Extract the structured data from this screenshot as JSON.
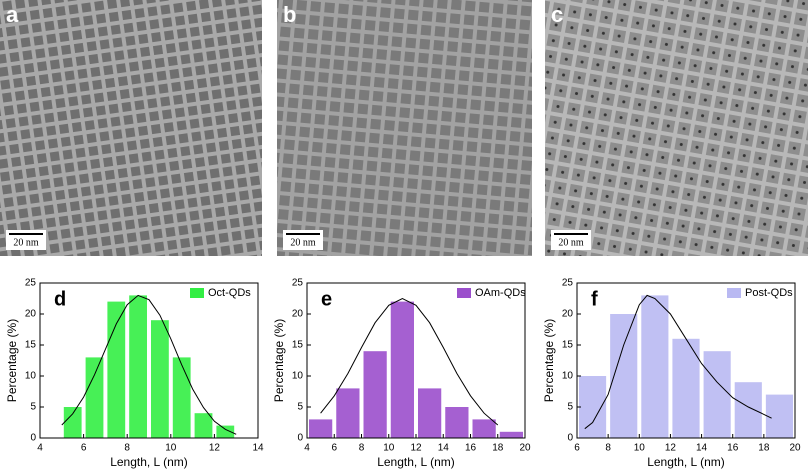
{
  "images": [
    {
      "label": "a",
      "scale_bar": "20 nm"
    },
    {
      "label": "b",
      "scale_bar": "20 nm"
    },
    {
      "label": "c",
      "scale_bar": "20 nm"
    }
  ],
  "chart_data": [
    {
      "type": "histogram",
      "label": "d",
      "legend": "Oct-QDs",
      "color": "#33ee44",
      "xlabel": "Length, L (nm)",
      "ylabel": "Percentage (%)",
      "bins": [
        5,
        6,
        7,
        8,
        9,
        10,
        11,
        12,
        13
      ],
      "values": [
        5,
        13,
        22,
        23,
        19,
        13,
        4,
        2
      ],
      "xlim": [
        4,
        14
      ],
      "xticks": [
        4,
        6,
        8,
        10,
        12,
        14
      ],
      "ylim": [
        0,
        25
      ],
      "yticks": [
        0,
        5,
        10,
        15,
        20,
        25
      ],
      "curve": {
        "x": [
          5,
          5.5,
          6,
          6.5,
          7,
          7.5,
          8,
          8.5,
          9,
          9.5,
          10,
          10.5,
          11,
          11.5,
          12,
          12.5,
          13
        ],
        "values": [
          2.1,
          3.9,
          6.6,
          10.2,
          14.3,
          18.4,
          21.5,
          23.0,
          22.3,
          19.8,
          16.0,
          11.8,
          7.9,
          4.9,
          2.7,
          1.4,
          0.6
        ]
      }
    },
    {
      "type": "histogram",
      "label": "e",
      "legend": "OAm-QDs",
      "color": "#9b4fcc",
      "xlabel": "Length, L (nm)",
      "ylabel": "Percentage (%)",
      "bins": [
        4,
        6,
        8,
        10,
        12,
        14,
        16,
        18,
        20
      ],
      "values": [
        3,
        8,
        14,
        22,
        8,
        5,
        3,
        1
      ],
      "xlim": [
        4,
        20
      ],
      "xticks": [
        4,
        6,
        8,
        10,
        12,
        14,
        16,
        18,
        20
      ],
      "ylim": [
        0,
        25
      ],
      "yticks": [
        0,
        5,
        10,
        15,
        20,
        25
      ],
      "curve": {
        "x": [
          5,
          6,
          7,
          8,
          9,
          10,
          11,
          12,
          13,
          14,
          15,
          16,
          17,
          18
        ],
        "values": [
          4.0,
          6.8,
          10.4,
          14.6,
          18.6,
          21.4,
          22.5,
          21.4,
          18.6,
          14.6,
          10.4,
          6.8,
          4.0,
          2.1
        ]
      }
    },
    {
      "type": "histogram",
      "label": "f",
      "legend": "Post-QDs",
      "color": "#b9b9f2",
      "xlabel": "Length, L (nm)",
      "ylabel": "Percentage (%)",
      "bins": [
        6,
        8,
        10,
        12,
        14,
        16,
        18,
        20
      ],
      "values": [
        10,
        20,
        23,
        16,
        14,
        9,
        7
      ],
      "xlim": [
        6,
        20
      ],
      "xticks": [
        6,
        8,
        10,
        12,
        14,
        16,
        18,
        20
      ],
      "ylim": [
        0,
        25
      ],
      "yticks": [
        0,
        5,
        10,
        15,
        20,
        25
      ],
      "curve": {
        "x": [
          6.5,
          7,
          8,
          9,
          10,
          10.5,
          11,
          12,
          13,
          14,
          15,
          16,
          17,
          18,
          18.5
        ],
        "values": [
          1.5,
          2.5,
          7,
          15,
          21.5,
          23,
          22.5,
          20,
          16,
          12,
          9,
          6.5,
          5,
          3.8,
          3.2
        ]
      }
    }
  ]
}
